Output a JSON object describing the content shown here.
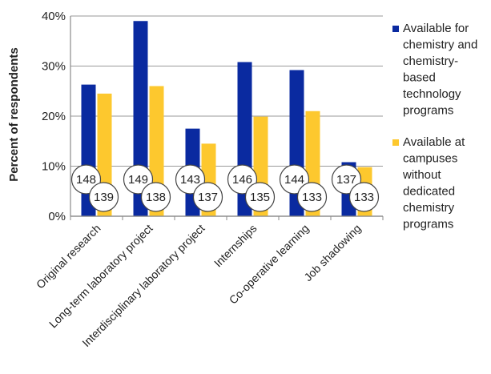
{
  "chart_data": {
    "type": "bar",
    "title": "",
    "xlabel": "",
    "ylabel": "Percent of respondents",
    "ylim": [
      0,
      40
    ],
    "yticks": [
      "0%",
      "10%",
      "20%",
      "30%",
      "40%"
    ],
    "ytick_values": [
      0,
      10,
      20,
      30,
      40
    ],
    "grid": true,
    "legend_position": "right",
    "categories": [
      "Original research",
      "Long-term laboratory project",
      "Interdisciplinary laboratory project",
      "Internships",
      "Co-operative learning",
      "Job shadowing"
    ],
    "series": [
      {
        "name": "Available for chemistry and chemistry-based technology programs",
        "legend_lines": [
          "Available for",
          "chemistry and",
          "chemistry-",
          "based",
          "technology",
          "programs"
        ],
        "color": "#0a2aa0",
        "values": [
          26.3,
          39.0,
          17.5,
          30.8,
          29.2,
          10.8
        ],
        "counts": [
          "148",
          "149",
          "143",
          "146",
          "144",
          "137"
        ]
      },
      {
        "name": "Available at campuses without dedicated chemistry programs",
        "legend_lines": [
          "Available at",
          "campuses",
          "without",
          "dedicated",
          "chemistry",
          "programs"
        ],
        "color": "#fdc82e",
        "values": [
          24.5,
          26.0,
          14.5,
          19.9,
          21.0,
          9.8
        ],
        "counts": [
          "139",
          "138",
          "137",
          "135",
          "133",
          "133"
        ]
      }
    ]
  }
}
